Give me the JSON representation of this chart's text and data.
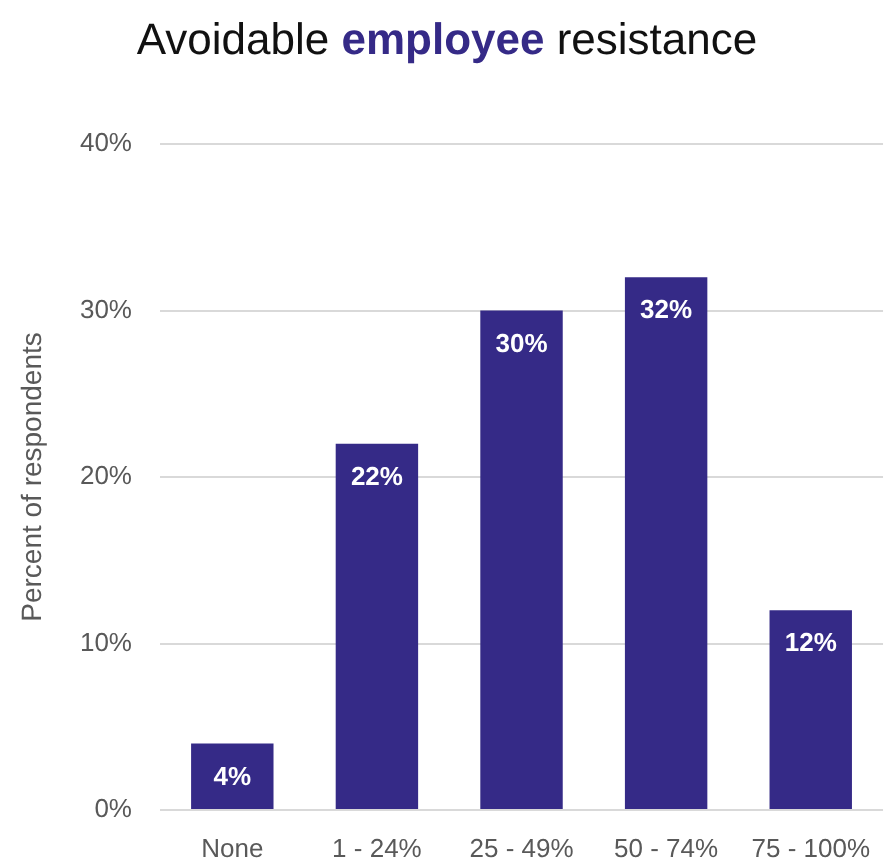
{
  "chart_data": {
    "type": "bar",
    "title": "Avoidable employee resistance",
    "ylabel": "Percent of respondents",
    "categories": [
      "None",
      "1 - 24%",
      "25 - 49%",
      "50 - 74%",
      "75 - 100%"
    ],
    "values": [
      4,
      22,
      30,
      32,
      12
    ],
    "value_labels": [
      "4%",
      "22%",
      "30%",
      "32%",
      "12%"
    ],
    "color": "#352a87",
    "ylim": [
      0,
      40
    ],
    "yticks": [
      {
        "value": 0,
        "label": "0%"
      },
      {
        "value": 10,
        "label": "10%"
      },
      {
        "value": 20,
        "label": "20%"
      },
      {
        "value": 30,
        "label": "30%"
      },
      {
        "value": 40,
        "label": "40%"
      }
    ],
    "grid": "y"
  }
}
